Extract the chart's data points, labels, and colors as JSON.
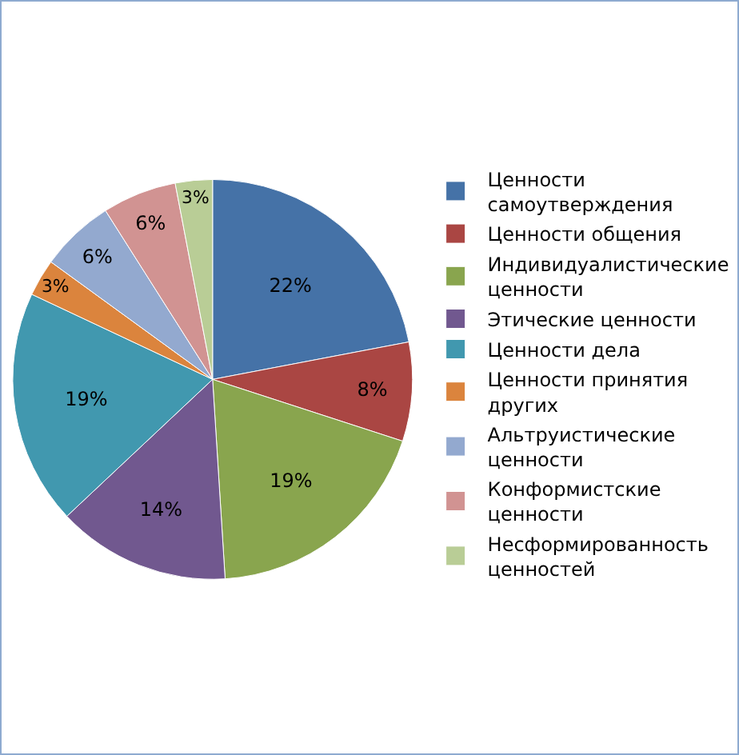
{
  "chart_data": {
    "type": "pie",
    "categories": [
      "Ценности самоутверждения",
      "Ценности общения",
      "Индивидуалистические ценности",
      "Этические ценности",
      "Ценности дела",
      "Ценности принятия других",
      "Альтруистические ценности",
      "Конформистские ценности",
      "Несформированность ценностей"
    ],
    "values": [
      22,
      8,
      19,
      14,
      19,
      3,
      6,
      6,
      3
    ],
    "value_labels": [
      "22%",
      "8%",
      "19%",
      "14%",
      "19%",
      "3%",
      "6%",
      "6%",
      "3%"
    ],
    "colors": [
      "#4572a7",
      "#aa4643",
      "#89a54e",
      "#71588f",
      "#4198af",
      "#db843d",
      "#93a9cf",
      "#d19392",
      "#b9cd96"
    ],
    "legend": "right"
  }
}
